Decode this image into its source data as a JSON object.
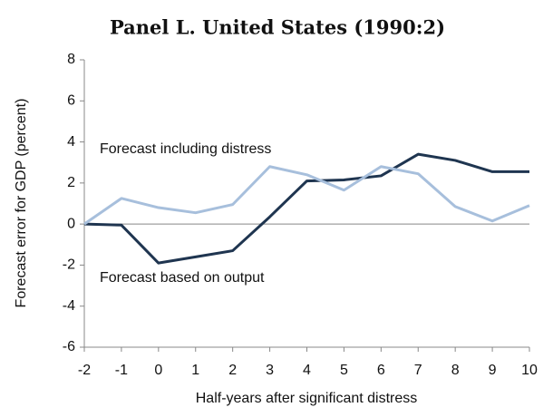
{
  "chart_data": {
    "type": "line",
    "title": "Panel L.  United States (1990:2)",
    "x_label": "Half-years after significant distress",
    "y_label": "Forecast error for GDP (percent)",
    "x": [
      -2,
      -1,
      0,
      1,
      2,
      3,
      4,
      5,
      6,
      7,
      8,
      9,
      10
    ],
    "series": [
      {
        "name": "Forecast based on output",
        "color": "#1f3550",
        "values": [
          0,
          -0.05,
          -1.9,
          -1.6,
          -1.3,
          0.35,
          2.1,
          2.15,
          2.35,
          3.4,
          3.1,
          2.55,
          2.55
        ]
      },
      {
        "name": "Forecast including distress",
        "color": "#a7bfdc",
        "values": [
          0,
          1.25,
          0.8,
          0.55,
          0.95,
          2.8,
          2.4,
          1.65,
          2.8,
          2.45,
          0.85,
          0.15,
          0.9
        ]
      }
    ],
    "xlim": [
      -2,
      10
    ],
    "xticks": [
      -2,
      -1,
      0,
      1,
      2,
      3,
      4,
      5,
      6,
      7,
      8,
      9,
      10
    ],
    "ylim": [
      -6,
      8
    ],
    "yticks": [
      -6,
      -4,
      -2,
      0,
      2,
      4,
      6,
      8
    ]
  }
}
